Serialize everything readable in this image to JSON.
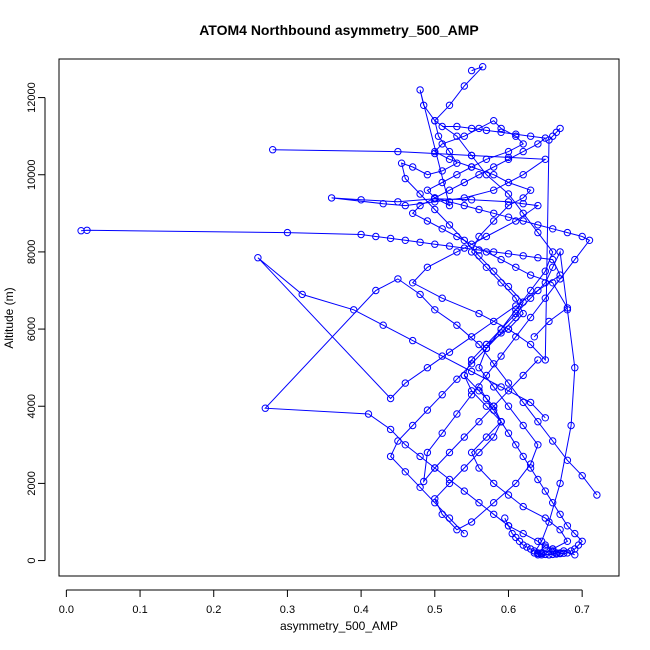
{
  "chart_data": {
    "type": "scatter",
    "title": "ATOM4 Northbound asymmetry_500_AMP",
    "xlabel": "asymmetry_500_AMP",
    "ylabel": "Altitude (m)",
    "xlim": [
      -0.01,
      0.75
    ],
    "ylim": [
      -400,
      13000
    ],
    "x_ticks": [
      0.0,
      0.1,
      0.2,
      0.3,
      0.4,
      0.5,
      0.6,
      0.7
    ],
    "x_tick_labels": [
      "0.0",
      "0.1",
      "0.2",
      "0.3",
      "0.4",
      "0.5",
      "0.6",
      "0.7"
    ],
    "y_ticks": [
      0,
      2000,
      4000,
      6000,
      8000,
      10000,
      12000
    ],
    "y_tick_labels": [
      "0",
      "2000",
      "4000",
      "6000",
      "8000",
      "10000",
      "12000"
    ],
    "grid": false,
    "legend": "none",
    "series_color": "#0000ff",
    "marker": "open-circle",
    "connected": true,
    "series": [
      {
        "x": [
          0.64,
          0.66,
          0.68,
          0.67,
          0.65,
          0.62,
          0.6,
          0.58,
          0.56,
          0.55,
          0.57,
          0.59,
          0.58,
          0.56,
          0.54,
          0.55,
          0.57,
          0.6,
          0.62,
          0.61,
          0.59,
          0.57,
          0.55,
          0.56,
          0.58,
          0.6,
          0.62,
          0.63,
          0.6,
          0.58,
          0.55,
          0.52,
          0.5,
          0.51,
          0.54,
          0.56,
          0.58,
          0.59,
          0.61,
          0.62,
          0.6,
          0.57,
          0.55,
          0.53,
          0.51,
          0.49,
          0.5,
          0.52,
          0.48,
          0.485,
          0.5,
          0.53,
          0.55,
          0.57,
          0.6,
          0.62,
          0.64,
          0.66,
          0.65,
          0.63,
          0.61,
          0.59,
          0.57,
          0.56,
          0.58,
          0.6,
          0.62,
          0.64,
          0.63,
          0.61,
          0.58,
          0.55,
          0.53,
          0.51,
          0.5,
          0.52,
          0.54,
          0.56,
          0.58,
          0.59,
          0.57,
          0.55,
          0.54,
          0.55,
          0.57,
          0.59,
          0.61,
          0.63,
          0.65,
          0.66,
          0.67,
          0.68,
          0.69,
          0.685,
          0.67,
          0.655,
          0.645,
          0.635,
          0.645,
          0.655,
          0.665,
          0.675,
          0.69
        ],
        "y": [
          150,
          300,
          500,
          800,
          1100,
          1400,
          1700,
          2000,
          2400,
          2800,
          3200,
          3600,
          4000,
          4400,
          4800,
          5200,
          5600,
          6000,
          6400,
          6800,
          7200,
          7600,
          8000,
          8400,
          8800,
          9200,
          9400,
          9600,
          9800,
          10000,
          10200,
          10400,
          10600,
          10800,
          11000,
          11200,
          11400,
          11200,
          11000,
          10800,
          10600,
          10400,
          10200,
          10000,
          9800,
          9600,
          9400,
          9200,
          12200,
          11800,
          11400,
          11000,
          10500,
          10000,
          9500,
          9000,
          8500,
          8000,
          7500,
          7000,
          6500,
          6000,
          5500,
          5000,
          4500,
          4000,
          3500,
          3000,
          2500,
          2000,
          1500,
          1000,
          800,
          1200,
          1600,
          2000,
          2400,
          2800,
          3200,
          3600,
          4000,
          4400,
          4800,
          5200,
          5600,
          6000,
          6400,
          6800,
          7200,
          7600,
          8000,
          6500,
          5000,
          3500,
          2000,
          1000,
          500,
          200,
          150,
          150,
          200,
          250,
          150
        ]
      },
      {
        "x": [
          0.72,
          0.7,
          0.68,
          0.66,
          0.64,
          0.62,
          0.6,
          0.58,
          0.56,
          0.53,
          0.5,
          0.48,
          0.45,
          0.42,
          0.27,
          0.41,
          0.44,
          0.46,
          0.48,
          0.5,
          0.52,
          0.54,
          0.56,
          0.58,
          0.6,
          0.62,
          0.64,
          0.65,
          0.66,
          0.67,
          0.66,
          0.65,
          0.64,
          0.645
        ],
        "y": [
          1700,
          2200,
          2600,
          3100,
          3600,
          4100,
          4600,
          5100,
          5600,
          6100,
          6500,
          6900,
          7300,
          7000,
          3950,
          3800,
          3400,
          3000,
          2700,
          2400,
          2100,
          1800,
          1500,
          1200,
          900,
          700,
          500,
          350,
          250,
          200,
          300,
          400,
          180,
          200
        ]
      },
      {
        "x": [
          0.02,
          0.028,
          0.3,
          0.4,
          0.42,
          0.44,
          0.46,
          0.48,
          0.5,
          0.52,
          0.54,
          0.56,
          0.58,
          0.6,
          0.62,
          0.64,
          0.66,
          0.67,
          0.64,
          0.61,
          0.58,
          0.55,
          0.52,
          0.49,
          0.46,
          0.44,
          0.26,
          0.32,
          0.39,
          0.43,
          0.47,
          0.51,
          0.55,
          0.59,
          0.63,
          0.65
        ],
        "y": [
          8550,
          8560,
          8500,
          8450,
          8400,
          8350,
          8300,
          8250,
          8200,
          8150,
          8100,
          8050,
          8000,
          7950,
          7900,
          7850,
          7800,
          7400,
          7000,
          6600,
          6200,
          5800,
          5400,
          5000,
          4600,
          4200,
          7850,
          6900,
          6500,
          6100,
          5700,
          5300,
          4900,
          4500,
          4100,
          3700
        ]
      },
      {
        "x": [
          0.28,
          0.45,
          0.5,
          0.55,
          0.6,
          0.65,
          0.62,
          0.58,
          0.54,
          0.5,
          0.46,
          0.43,
          0.36,
          0.4,
          0.45,
          0.5,
          0.55,
          0.6,
          0.62,
          0.64,
          0.61,
          0.57,
          0.53,
          0.49,
          0.47,
          0.51,
          0.56,
          0.6,
          0.63,
          0.65,
          0.655,
          0.66,
          0.665,
          0.67
        ],
        "y": [
          10650,
          10600,
          10550,
          10500,
          10450,
          10400,
          10000,
          9600,
          9400,
          9300,
          9200,
          9250,
          9400,
          9350,
          9300,
          9380,
          9350,
          9300,
          9250,
          9200,
          8800,
          8400,
          8000,
          7600,
          7200,
          6800,
          6400,
          6000,
          5600,
          5200,
          10900,
          11000,
          11100,
          11200
        ]
      },
      {
        "x": [
          0.51,
          0.53,
          0.55,
          0.57,
          0.59,
          0.61,
          0.63,
          0.65,
          0.64,
          0.62,
          0.6,
          0.58,
          0.56,
          0.54,
          0.52,
          0.5,
          0.48,
          0.47,
          0.49,
          0.51,
          0.53,
          0.55,
          0.57,
          0.59,
          0.61,
          0.63,
          0.66,
          0.68,
          0.655,
          0.635
        ],
        "y": [
          11250,
          11250,
          11200,
          11150,
          11100,
          11050,
          11000,
          10950,
          10800,
          10600,
          10400,
          10200,
          10000,
          9800,
          9600,
          9400,
          9200,
          9000,
          8800,
          8600,
          8400,
          8200,
          8000,
          7800,
          7600,
          7400,
          7200,
          6550,
          6200,
          5800
        ]
      },
      {
        "x": [
          0.55,
          0.565,
          0.54,
          0.52,
          0.5,
          0.505,
          0.52,
          0.53,
          0.51,
          0.49,
          0.47,
          0.455,
          0.46,
          0.48,
          0.5,
          0.52,
          0.54,
          0.56,
          0.58,
          0.6,
          0.62,
          0.61,
          0.59,
          0.57,
          0.55,
          0.53,
          0.51,
          0.49,
          0.47,
          0.45,
          0.44,
          0.46,
          0.48,
          0.5,
          0.52,
          0.54
        ],
        "y": [
          12700,
          12800,
          12300,
          11800,
          11400,
          11000,
          10600,
          10300,
          10100,
          10000,
          10200,
          10300,
          9900,
          9500,
          9100,
          8700,
          8300,
          7900,
          7500,
          7100,
          6700,
          6300,
          5900,
          5500,
          5100,
          4700,
          4300,
          3900,
          3500,
          3100,
          2700,
          2300,
          1900,
          1500,
          1100,
          700
        ]
      },
      {
        "x": [
          0.5,
          0.52,
          0.54,
          0.56,
          0.58,
          0.6,
          0.62,
          0.64,
          0.66,
          0.68,
          0.7,
          0.71,
          0.69,
          0.67,
          0.65,
          0.63,
          0.61,
          0.59,
          0.57,
          0.55,
          0.53,
          0.51,
          0.49,
          0.485,
          0.5,
          0.52,
          0.54,
          0.56,
          0.58,
          0.6,
          0.62,
          0.64
        ],
        "y": [
          9400,
          9300,
          9200,
          9100,
          9000,
          8900,
          8800,
          8700,
          8600,
          8500,
          8400,
          8300,
          7800,
          7300,
          6800,
          6300,
          5800,
          5300,
          4800,
          4300,
          3800,
          3300,
          2800,
          2050,
          2400,
          2800,
          3200,
          3600,
          4000,
          4400,
          4800,
          5200
        ]
      },
      {
        "x": [
          0.595,
          0.6,
          0.605,
          0.61,
          0.615,
          0.62,
          0.625,
          0.63,
          0.635,
          0.64,
          0.645,
          0.65,
          0.655,
          0.66,
          0.665,
          0.67,
          0.675,
          0.68,
          0.685,
          0.69,
          0.695,
          0.7,
          0.69,
          0.68,
          0.67,
          0.66,
          0.65,
          0.64,
          0.63,
          0.62,
          0.61,
          0.6,
          0.59,
          0.58,
          0.57,
          0.56
        ],
        "y": [
          1100,
          900,
          700,
          600,
          500,
          400,
          350,
          300,
          250,
          200,
          180,
          160,
          150,
          160,
          170,
          180,
          190,
          200,
          250,
          300,
          400,
          500,
          700,
          900,
          1200,
          1500,
          1800,
          2100,
          2400,
          2700,
          3000,
          3300,
          3600,
          3900,
          4200,
          4500
        ]
      }
    ]
  }
}
